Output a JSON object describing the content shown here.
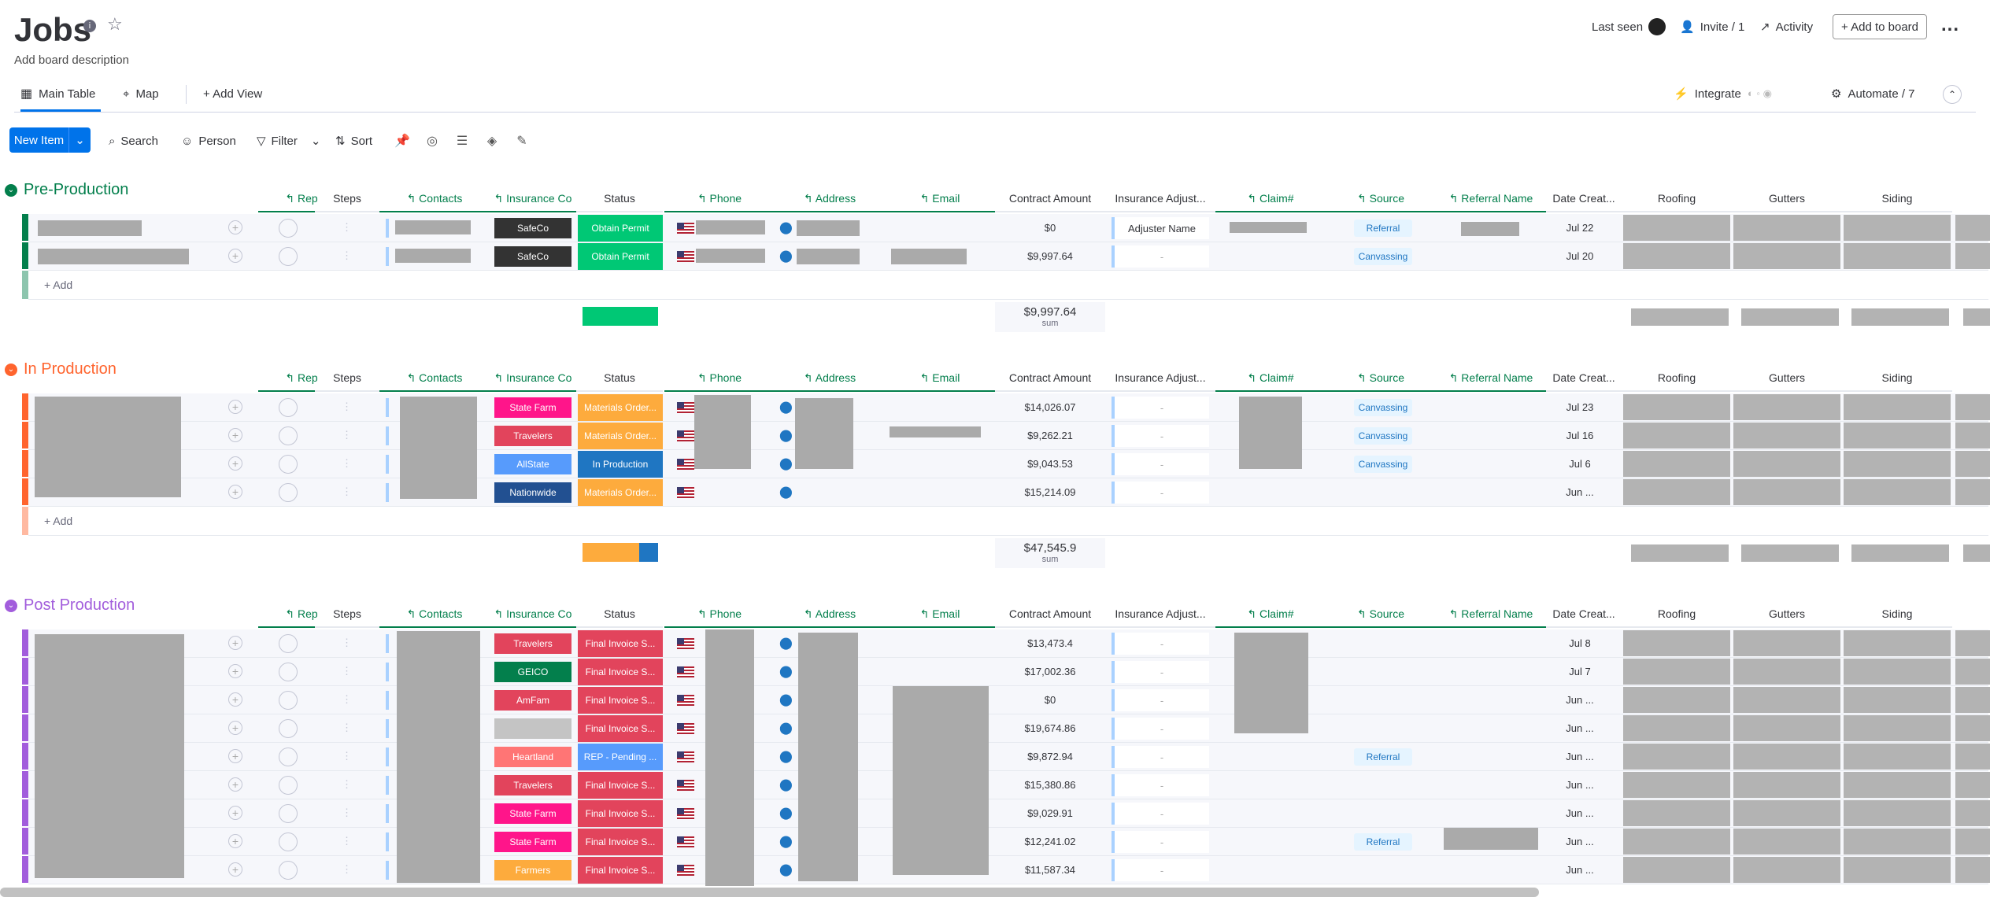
{
  "board": {
    "title": "Jobs",
    "description": "Add board description",
    "header_actions": {
      "last_seen": "Last seen",
      "invite": "Invite / 1",
      "activity": "Activity",
      "add_to_board": "+ Add to board",
      "more": "..."
    }
  },
  "views": {
    "main_table": "Main Table",
    "map": "Map",
    "add_view": "+ Add View",
    "integrate": "Integrate",
    "automate": "Automate / 7"
  },
  "toolbar": {
    "new_item": "New Item",
    "search": "Search",
    "person": "Person",
    "filter": "Filter",
    "sort": "Sort"
  },
  "columns": {
    "rep": "Rep",
    "steps": "Steps",
    "contacts": "Contacts",
    "insurance_co": "Insurance Co",
    "status": "Status",
    "phone": "Phone",
    "address": "Address",
    "email": "Email",
    "contract_amount": "Contract Amount",
    "insurance_adjuster": "Insurance Adjust...",
    "claim": "Claim#",
    "source": "Source",
    "referral_name": "Referral Name",
    "date_created": "Date Creat...",
    "roofing": "Roofing",
    "gutters": "Gutters",
    "siding": "Siding"
  },
  "groups": [
    {
      "title": "Pre-Production",
      "color": "#037f4c",
      "add_label": "+ Add",
      "sum": "$9,997.64",
      "sum_label": "sum",
      "rows": [
        {
          "insurance": "SafeCo",
          "ins_color": "#333333",
          "status": "Obtain Permit",
          "status_color": "#00c875",
          "amount": "$0",
          "adjuster": "Adjuster Name",
          "source": "Referral",
          "date": "Jul 22"
        },
        {
          "insurance": "SafeCo",
          "ins_color": "#333333",
          "status": "Obtain Permit",
          "status_color": "#00c875",
          "amount": "$9,997.64",
          "adjuster": "-",
          "source": "Canvassing",
          "date": "Jul 20"
        }
      ]
    },
    {
      "title": "In Production",
      "color": "#ff642e",
      "add_label": "+ Add",
      "sum": "$47,545.9",
      "sum_label": "sum",
      "rows": [
        {
          "insurance": "State Farm",
          "ins_color": "#ff158a",
          "status": "Materials Order...",
          "status_color": "#fdab3d",
          "amount": "$14,026.07",
          "adjuster": "-",
          "source": "Canvassing",
          "date": "Jul 23"
        },
        {
          "insurance": "Travelers",
          "ins_color": "#e2445c",
          "status": "Materials Order...",
          "status_color": "#fdab3d",
          "amount": "$9,262.21",
          "adjuster": "-",
          "source": "Canvassing",
          "date": "Jul 16"
        },
        {
          "insurance": "AllState",
          "ins_color": "#579bfc",
          "status": "In Production",
          "status_color": "#1f76c2",
          "amount": "$9,043.53",
          "adjuster": "-",
          "source": "Canvassing",
          "date": "Jul 6"
        },
        {
          "insurance": "Nationwide",
          "ins_color": "#225091",
          "status": "Materials Order...",
          "status_color": "#fdab3d",
          "amount": "$15,214.09",
          "adjuster": "-",
          "source": "",
          "date": "Jun ..."
        }
      ]
    },
    {
      "title": "Post Production",
      "color": "#a25ddc",
      "rows": [
        {
          "insurance": "Travelers",
          "ins_color": "#e2445c",
          "status": "Final Invoice S...",
          "status_color": "#e2445c",
          "amount": "$13,473.4",
          "adjuster": "-",
          "source": "",
          "date": "Jul 8"
        },
        {
          "insurance": "GEICO",
          "ins_color": "#037f4c",
          "status": "Final Invoice S...",
          "status_color": "#e2445c",
          "amount": "$17,002.36",
          "adjuster": "-",
          "source": "",
          "date": "Jul 7"
        },
        {
          "insurance": "AmFam",
          "ins_color": "#e2445c",
          "status": "Final Invoice S...",
          "status_color": "#e2445c",
          "amount": "$0",
          "adjuster": "-",
          "source": "",
          "date": "Jun ..."
        },
        {
          "insurance": "",
          "ins_color": "#c4c4c4",
          "status": "Final Invoice S...",
          "status_color": "#e2445c",
          "amount": "$19,674.86",
          "adjuster": "-",
          "source": "",
          "date": "Jun ..."
        },
        {
          "insurance": "Heartland",
          "ins_color": "#ff7575",
          "status": "REP - Pending ...",
          "status_color": "#579bfc",
          "amount": "$9,872.94",
          "adjuster": "-",
          "source": "Referral",
          "date": "Jun ..."
        },
        {
          "insurance": "Travelers",
          "ins_color": "#e2445c",
          "status": "Final Invoice S...",
          "status_color": "#e2445c",
          "amount": "$15,380.86",
          "adjuster": "-",
          "source": "",
          "date": "Jun ..."
        },
        {
          "insurance": "State Farm",
          "ins_color": "#ff158a",
          "status": "Final Invoice S...",
          "status_color": "#e2445c",
          "amount": "$9,029.91",
          "adjuster": "-",
          "source": "",
          "date": "Jun ..."
        },
        {
          "insurance": "State Farm",
          "ins_color": "#ff158a",
          "status": "Final Invoice S...",
          "status_color": "#e2445c",
          "amount": "$12,241.02",
          "adjuster": "-",
          "source": "Referral",
          "date": "Jun ..."
        },
        {
          "insurance": "Farmers",
          "ins_color": "#fdab3d",
          "status": "Final Invoice S...",
          "status_color": "#e2445c",
          "amount": "$11,587.34",
          "adjuster": "-",
          "source": "",
          "date": "Jun ..."
        }
      ]
    }
  ]
}
